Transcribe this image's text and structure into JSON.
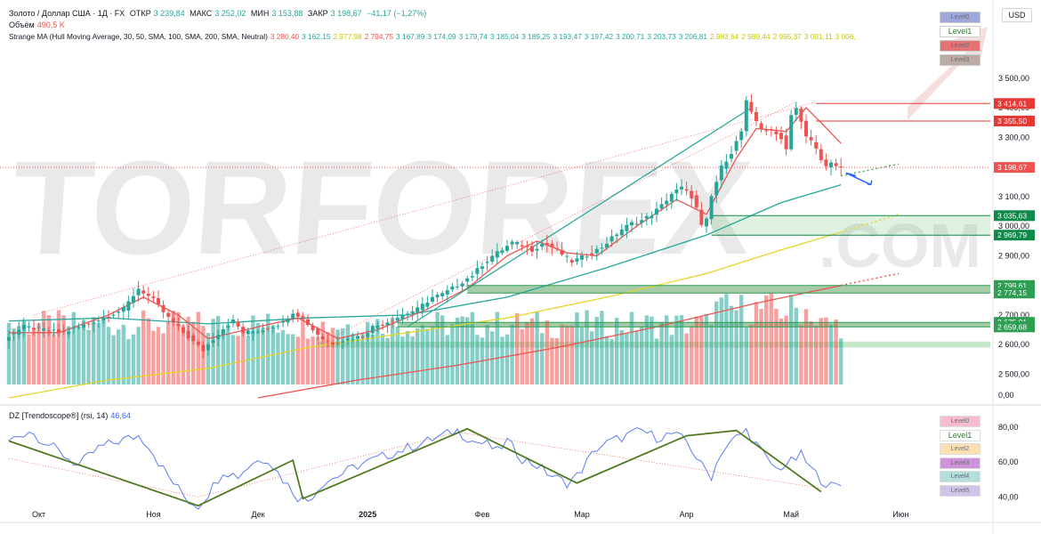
{
  "header": {
    "symbol": "Золото / Доллар США · 1Д · FX",
    "open_label": "ОТКР",
    "open": "3 239,84",
    "high_label": "МАКС",
    "high": "3 252,02",
    "low_label": "МИН",
    "low": "3 153,88",
    "close_label": "ЗАКР",
    "close": "3 198,67",
    "change": "−41,17 (−1,27%)",
    "volume_label": "Объём",
    "volume": "490,5 K",
    "ma_label": "Strange MA (Hull Moving Average, 30, 50, SMA, 100, SMA, 200, SMA, Neutral)",
    "ma_values": [
      {
        "v": "3 280,40",
        "c": "#ef5350"
      },
      {
        "v": "3 162,15",
        "c": "#26a69a"
      },
      {
        "v": "2 977,98",
        "c": "#c8c800"
      },
      {
        "v": "2 794,75",
        "c": "#ef5350"
      },
      {
        "v": "3 167,89",
        "c": "#26a69a"
      },
      {
        "v": "3 174,09",
        "c": "#26a69a"
      },
      {
        "v": "3 179,74",
        "c": "#26a69a"
      },
      {
        "v": "3 185,04",
        "c": "#26a69a"
      },
      {
        "v": "3 189,25",
        "c": "#26a69a"
      },
      {
        "v": "3 193,47",
        "c": "#26a69a"
      },
      {
        "v": "3 197,42",
        "c": "#26a69a"
      },
      {
        "v": "3 200,71",
        "c": "#26a69a"
      },
      {
        "v": "3 203,73",
        "c": "#26a69a"
      },
      {
        "v": "3 206,81",
        "c": "#26a69a"
      },
      {
        "v": "2 983,64",
        "c": "#c8c800"
      },
      {
        "v": "2 989,44",
        "c": "#c8c800"
      },
      {
        "v": "2 995,37",
        "c": "#c8c800"
      },
      {
        "v": "3 001,11",
        "c": "#c8c800"
      },
      {
        "v": "3 006,",
        "c": "#c8c800"
      }
    ]
  },
  "osc_header": {
    "label": "DZ [Trendoscope®] (rsi, 14)",
    "value": "46,64"
  },
  "currency": "USD",
  "watermark": "TORFOREX.COM",
  "level_palette_main": [
    {
      "label": "Level0",
      "bg": "#9fa8da"
    },
    {
      "label": "Level1",
      "bg": "#ffffff"
    },
    {
      "label": "Level2",
      "bg": "#e57373"
    },
    {
      "label": "Level3",
      "bg": "#bcaaa4"
    }
  ],
  "level_palette_osc": [
    {
      "label": "Level0",
      "bg": "#f8bbd0"
    },
    {
      "label": "Level1",
      "bg": "#ffffff"
    },
    {
      "label": "Level2",
      "bg": "#ffe0b2"
    },
    {
      "label": "Level3",
      "bg": "#ce93d8"
    },
    {
      "label": "Level4",
      "bg": "#b2dfdb"
    },
    {
      "label": "Level5",
      "bg": "#d1c4e9"
    }
  ],
  "chart_data": {
    "type": "candlestick",
    "title": "Gold / US Dollar · 1D · FX",
    "x_labels": [
      {
        "i": 6,
        "label": "Окт"
      },
      {
        "i": 29,
        "label": "Ноя"
      },
      {
        "i": 50,
        "label": "Дек"
      },
      {
        "i": 72,
        "label": "2025"
      },
      {
        "i": 95,
        "label": "Фев"
      },
      {
        "i": 115,
        "label": "Мар"
      },
      {
        "i": 136,
        "label": "Апр"
      },
      {
        "i": 157,
        "label": "Май"
      },
      {
        "i": 179,
        "label": "Июн"
      }
    ],
    "ylim": [
      2420,
      3620
    ],
    "y_ticks": [
      "2 500,00",
      "2 600,00",
      "2 700,00",
      "2 800,00",
      "2 900,00",
      "3 000,00",
      "3 100,00",
      "3 200,00",
      "3 300,00",
      "3 400,00",
      "3 500,00"
    ],
    "y_tick_values": [
      2500,
      2600,
      2700,
      2800,
      2900,
      3000,
      3100,
      3200,
      3300,
      3400,
      3500
    ],
    "zero_label": "0,00",
    "anchors": [
      [
        0,
        2620
      ],
      [
        4,
        2660
      ],
      [
        8,
        2650
      ],
      [
        12,
        2640
      ],
      [
        16,
        2665
      ],
      [
        20,
        2690
      ],
      [
        24,
        2720
      ],
      [
        27,
        2790
      ],
      [
        30,
        2750
      ],
      [
        33,
        2690
      ],
      [
        36,
        2640
      ],
      [
        38,
        2610
      ],
      [
        40,
        2580
      ],
      [
        42,
        2620
      ],
      [
        44,
        2655
      ],
      [
        46,
        2680
      ],
      [
        48,
        2640
      ],
      [
        52,
        2650
      ],
      [
        56,
        2675
      ],
      [
        58,
        2710
      ],
      [
        60,
        2690
      ],
      [
        62,
        2650
      ],
      [
        64,
        2620
      ],
      [
        66,
        2605
      ],
      [
        68,
        2615
      ],
      [
        72,
        2630
      ],
      [
        74,
        2660
      ],
      [
        76,
        2670
      ],
      [
        80,
        2700
      ],
      [
        83,
        2720
      ],
      [
        86,
        2760
      ],
      [
        88,
        2770
      ],
      [
        90,
        2790
      ],
      [
        94,
        2835
      ],
      [
        96,
        2870
      ],
      [
        98,
        2900
      ],
      [
        100,
        2920
      ],
      [
        102,
        2945
      ],
      [
        104,
        2935
      ],
      [
        106,
        2920
      ],
      [
        108,
        2940
      ],
      [
        110,
        2930
      ],
      [
        112,
        2905
      ],
      [
        114,
        2880
      ],
      [
        116,
        2895
      ],
      [
        118,
        2910
      ],
      [
        120,
        2930
      ],
      [
        122,
        2960
      ],
      [
        124,
        2990
      ],
      [
        126,
        3010
      ],
      [
        128,
        3020
      ],
      [
        130,
        3040
      ],
      [
        132,
        3070
      ],
      [
        134,
        3110
      ],
      [
        136,
        3130
      ],
      [
        138,
        3100
      ],
      [
        139,
        3060
      ],
      [
        140,
        3000
      ],
      [
        141,
        3020
      ],
      [
        142,
        3100
      ],
      [
        144,
        3200
      ],
      [
        146,
        3250
      ],
      [
        148,
        3320
      ],
      [
        149,
        3420
      ],
      [
        150,
        3380
      ],
      [
        152,
        3330
      ],
      [
        154,
        3320
      ],
      [
        156,
        3300
      ],
      [
        157,
        3260
      ],
      [
        158,
        3380
      ],
      [
        159,
        3400
      ],
      [
        160,
        3350
      ],
      [
        161,
        3300
      ],
      [
        162,
        3290
      ],
      [
        163,
        3260
      ],
      [
        164,
        3230
      ],
      [
        165,
        3200
      ],
      [
        166,
        3210
      ],
      [
        167,
        3198.67
      ]
    ],
    "last_index": 167,
    "ma_series": [
      {
        "name": "SMA 50",
        "color": "#26a69a",
        "points": [
          [
            0,
            2680
          ],
          [
            20,
            2690
          ],
          [
            40,
            2670
          ],
          [
            60,
            2690
          ],
          [
            80,
            2700
          ],
          [
            100,
            2760
          ],
          [
            120,
            2860
          ],
          [
            140,
            2970
          ],
          [
            155,
            3080
          ],
          [
            167,
            3140
          ]
        ]
      },
      {
        "name": "SMA 100",
        "color": "#e6d52a",
        "points": [
          [
            0,
            2420
          ],
          [
            20,
            2480
          ],
          [
            40,
            2520
          ],
          [
            60,
            2590
          ],
          [
            80,
            2640
          ],
          [
            100,
            2690
          ],
          [
            120,
            2760
          ],
          [
            140,
            2840
          ],
          [
            155,
            2920
          ],
          [
            167,
            2980
          ]
        ]
      },
      {
        "name": "SMA 200",
        "color": "#ef5350",
        "points": [
          [
            50,
            2420
          ],
          [
            70,
            2480
          ],
          [
            90,
            2530
          ],
          [
            110,
            2590
          ],
          [
            130,
            2660
          ],
          [
            150,
            2740
          ],
          [
            167,
            2800
          ]
        ]
      },
      {
        "name": "Hull",
        "color": "#ef5350",
        "points": [
          [
            0,
            2640
          ],
          [
            10,
            2640
          ],
          [
            20,
            2700
          ],
          [
            27,
            2760
          ],
          [
            34,
            2700
          ],
          [
            40,
            2620
          ],
          [
            50,
            2660
          ],
          [
            58,
            2690
          ],
          [
            66,
            2620
          ],
          [
            74,
            2650
          ],
          [
            84,
            2720
          ],
          [
            92,
            2790
          ],
          [
            100,
            2900
          ],
          [
            106,
            2950
          ],
          [
            112,
            2910
          ],
          [
            118,
            2900
          ],
          [
            126,
            3000
          ],
          [
            134,
            3090
          ],
          [
            140,
            3040
          ],
          [
            146,
            3230
          ],
          [
            150,
            3330
          ],
          [
            156,
            3320
          ],
          [
            160,
            3400
          ],
          [
            163,
            3350
          ],
          [
            167,
            3280
          ]
        ]
      }
    ],
    "price_levels": [
      {
        "label": "3 414,61",
        "value": 3414.61,
        "color": "#e53935",
        "from": 162
      },
      {
        "label": "3 355,50",
        "value": 3355.5,
        "color": "#e53935",
        "from": 162
      },
      {
        "label": "3 198,67",
        "value": 3198.67,
        "color": "#ef5350",
        "from": 0,
        "dotted": true
      },
      {
        "label": "3 035,63",
        "value": 3035.63,
        "color": "#0e8a4a",
        "from": 141
      },
      {
        "label": "2 969,79",
        "value": 2969.79,
        "color": "#0e8a4a",
        "from": 141
      },
      {
        "label": "2 799,61",
        "value": 2799.61,
        "color": "#2e9e52",
        "from": 92
      },
      {
        "label": "2 774,15",
        "value": 2774.15,
        "color": "#2e9e52",
        "from": 92
      },
      {
        "label": "2 675,01",
        "value": 2675.01,
        "color": "#2e9e52",
        "from": 78
      },
      {
        "label": "2 659,68",
        "value": 2659.68,
        "color": "#2e9e52",
        "from": 78
      }
    ],
    "zones": [
      {
        "from": 92,
        "y1": 2774.15,
        "y2": 2799.61,
        "color": "rgba(56,142,60,0.45)"
      },
      {
        "from": 78,
        "y1": 2659.68,
        "y2": 2675.01,
        "color": "rgba(56,142,60,0.45)"
      },
      {
        "from": 141,
        "y1": 2969.79,
        "y2": 3035.63,
        "color": "rgba(129,199,132,0.25)"
      },
      {
        "from": 62,
        "y1": 2590,
        "y2": 2610,
        "color": "rgba(129,199,132,0.45)"
      },
      {
        "from": 162,
        "y1": 3355.5,
        "y2": 3414.61,
        "color": "rgba(255,255,255,0)"
      }
    ],
    "volume": {
      "min": 180,
      "max": 520
    },
    "osc": {
      "name": "RSI 14",
      "ylim": [
        30,
        85
      ],
      "y_ticks": [
        "40,00",
        "60,00",
        "80,00"
      ],
      "y_tick_values": [
        40,
        60,
        80
      ],
      "anchors": [
        [
          0,
          72
        ],
        [
          4,
          78
        ],
        [
          8,
          70
        ],
        [
          12,
          62
        ],
        [
          14,
          58
        ],
        [
          18,
          68
        ],
        [
          22,
          72
        ],
        [
          26,
          75
        ],
        [
          28,
          70
        ],
        [
          30,
          60
        ],
        [
          33,
          48
        ],
        [
          36,
          38
        ],
        [
          38,
          35
        ],
        [
          40,
          42
        ],
        [
          43,
          55
        ],
        [
          46,
          52
        ],
        [
          49,
          60
        ],
        [
          52,
          62
        ],
        [
          55,
          50
        ],
        [
          58,
          40
        ],
        [
          60,
          38
        ],
        [
          63,
          48
        ],
        [
          66,
          52
        ],
        [
          70,
          58
        ],
        [
          74,
          62
        ],
        [
          78,
          66
        ],
        [
          82,
          70
        ],
        [
          86,
          74
        ],
        [
          90,
          78
        ],
        [
          93,
          72
        ],
        [
          96,
          70
        ],
        [
          98,
          66
        ],
        [
          100,
          72
        ],
        [
          103,
          62
        ],
        [
          106,
          58
        ],
        [
          109,
          52
        ],
        [
          112,
          48
        ],
        [
          114,
          52
        ],
        [
          116,
          60
        ],
        [
          118,
          68
        ],
        [
          121,
          72
        ],
        [
          124,
          75
        ],
        [
          127,
          78
        ],
        [
          130,
          74
        ],
        [
          133,
          76
        ],
        [
          136,
          72
        ],
        [
          139,
          58
        ],
        [
          141,
          52
        ],
        [
          143,
          66
        ],
        [
          146,
          74
        ],
        [
          148,
          78
        ],
        [
          150,
          70
        ],
        [
          152,
          62
        ],
        [
          154,
          56
        ],
        [
          157,
          60
        ],
        [
          159,
          64
        ],
        [
          161,
          56
        ],
        [
          163,
          50
        ],
        [
          165,
          46
        ],
        [
          167,
          46.64
        ]
      ],
      "trend": [
        [
          0,
          72
        ],
        [
          38,
          35
        ],
        [
          57,
          61
        ],
        [
          59,
          39
        ],
        [
          92,
          79
        ],
        [
          114,
          48
        ],
        [
          136,
          75
        ],
        [
          146,
          78
        ],
        [
          163,
          43
        ]
      ],
      "dashed": [
        [
          0,
          62
        ],
        [
          38,
          40
        ],
        [
          90,
          77
        ],
        [
          163,
          45
        ]
      ]
    }
  }
}
